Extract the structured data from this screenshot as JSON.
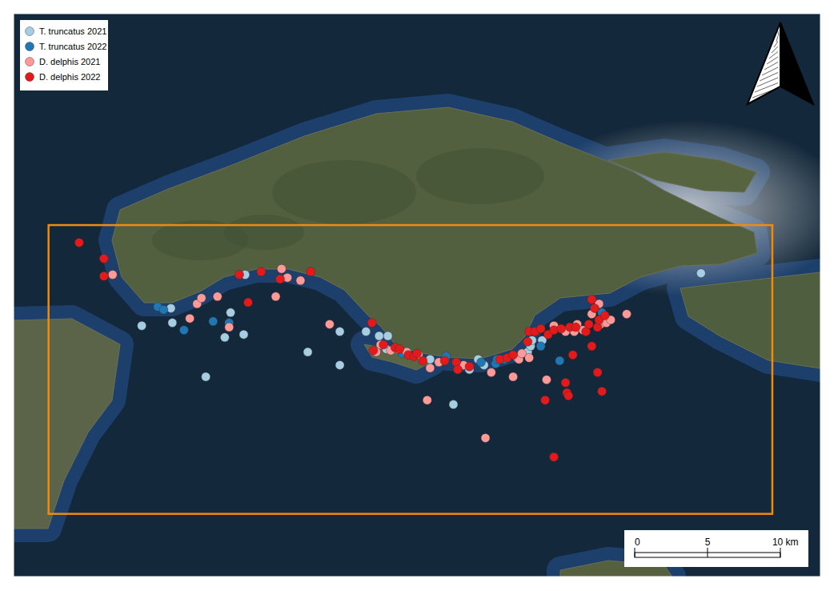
{
  "chart_data": {
    "type": "scatter",
    "xlim": [
      0,
      55.4
    ],
    "ylim": [
      0,
      38.6
    ],
    "tick_labels": false,
    "legend": "upper left",
    "study_area": {
      "x": [
        2.4,
        52.1
      ],
      "y": [
        4.3,
        24.1
      ]
    },
    "scale_bar": {
      "ticks": [
        0,
        5,
        {
          "value": 10,
          "label": "10 km"
        }
      ]
    },
    "series": [
      {
        "name": "T. truncatus 2021",
        "color": "#a6cee3",
        "marker": "circle",
        "x": [
          15.9,
          10.8,
          8.8,
          10.9,
          14.9,
          14.5,
          15.8,
          13.2,
          20.2,
          22.4,
          22.4,
          24.2,
          25.1,
          25.7,
          25.6,
          28.6,
          30.2,
          31.3,
          31.9,
          32.3,
          34.6,
          35.3,
          35.5,
          35.6,
          36.3,
          47.2
        ],
        "y": [
          20.7,
          18.4,
          17.2,
          17.4,
          18.1,
          16.4,
          16.6,
          13.7,
          15.4,
          16.8,
          14.5,
          16.8,
          16.5,
          16.5,
          15.6,
          14.9,
          11.8,
          14.2,
          14.9,
          14.5,
          15.0,
          15.4,
          15.8,
          16.2,
          16.2,
          20.8
        ]
      },
      {
        "name": "T. truncatus 2022",
        "color": "#1f78b4",
        "marker": "circle",
        "x": [
          9.9,
          10.3,
          11.7,
          13.7,
          14.8,
          26.7,
          29.7,
          32.1,
          33.1,
          33.2,
          33.7,
          36.2,
          37.5,
          40.4
        ],
        "y": [
          18.5,
          18.3,
          16.9,
          17.5,
          17.4,
          15.3,
          15.1,
          14.7,
          14.6,
          14.9,
          14.9,
          15.8,
          14.8,
          18.1
        ]
      },
      {
        "name": "D. delphis 2021",
        "color": "#fb9a99",
        "marker": "circle",
        "x": [
          6.8,
          12.1,
          12.6,
          12.9,
          14.0,
          14.8,
          18.0,
          18.4,
          18.8,
          19.7,
          21.7,
          24.9,
          25.2,
          25.9,
          26.4,
          27.0,
          27.8,
          28.4,
          28.6,
          29.2,
          30.9,
          32.4,
          32.8,
          34.3,
          34.7,
          34.9,
          35.4,
          36.6,
          37.1,
          37.9,
          38.5,
          38.7,
          39.1,
          39.7,
          40.2,
          40.3,
          40.7,
          41.0,
          42.1
        ],
        "y": [
          20.7,
          17.7,
          18.7,
          19.1,
          19.2,
          17.1,
          19.2,
          21.1,
          20.5,
          20.3,
          17.3,
          15.4,
          15.9,
          15.5,
          15.6,
          15.4,
          15.2,
          12.1,
          14.3,
          14.7,
          14.5,
          9.5,
          14.0,
          13.7,
          14.9,
          15.3,
          15.0,
          13.5,
          17.2,
          16.8,
          16.8,
          17.3,
          16.9,
          18.0,
          18.7,
          17.3,
          17.4,
          17.6,
          18.0
        ]
      },
      {
        "name": "D. delphis 2022",
        "color": "#e31a1c",
        "marker": "circle",
        "x": [
          4.5,
          6.2,
          6.2,
          15.5,
          16.1,
          17.0,
          18.3,
          20.4,
          24.6,
          24.7,
          25.4,
          26.2,
          26.5,
          27.1,
          27.5,
          27.7,
          28.1,
          29.6,
          30.4,
          30.5,
          31.3,
          33.4,
          33.9,
          34.3,
          35.3,
          35.4,
          35.8,
          36.2,
          36.7,
          37.1,
          37.6,
          38.2,
          38.6,
          39.3,
          39.5,
          39.7,
          39.9,
          40.1,
          40.2,
          40.6,
          39.7,
          38.4,
          40.1,
          37.9,
          38.0,
          38.1,
          36.5,
          40.4,
          37.1
        ],
        "y": [
          22.9,
          21.8,
          20.6,
          20.7,
          18.8,
          20.9,
          20.4,
          20.9,
          17.4,
          15.5,
          15.9,
          15.7,
          15.6,
          15.2,
          15.1,
          15.3,
          14.8,
          14.8,
          14.7,
          14.2,
          14.4,
          14.9,
          15.0,
          15.2,
          16.1,
          16.8,
          16.8,
          17.0,
          16.6,
          16.9,
          17.0,
          17.1,
          17.1,
          16.8,
          17.3,
          19.0,
          18.4,
          17.1,
          17.6,
          17.9,
          15.8,
          15.2,
          14.0,
          13.3,
          12.6,
          12.4,
          12.1,
          12.7,
          8.2
        ]
      }
    ]
  }
}
